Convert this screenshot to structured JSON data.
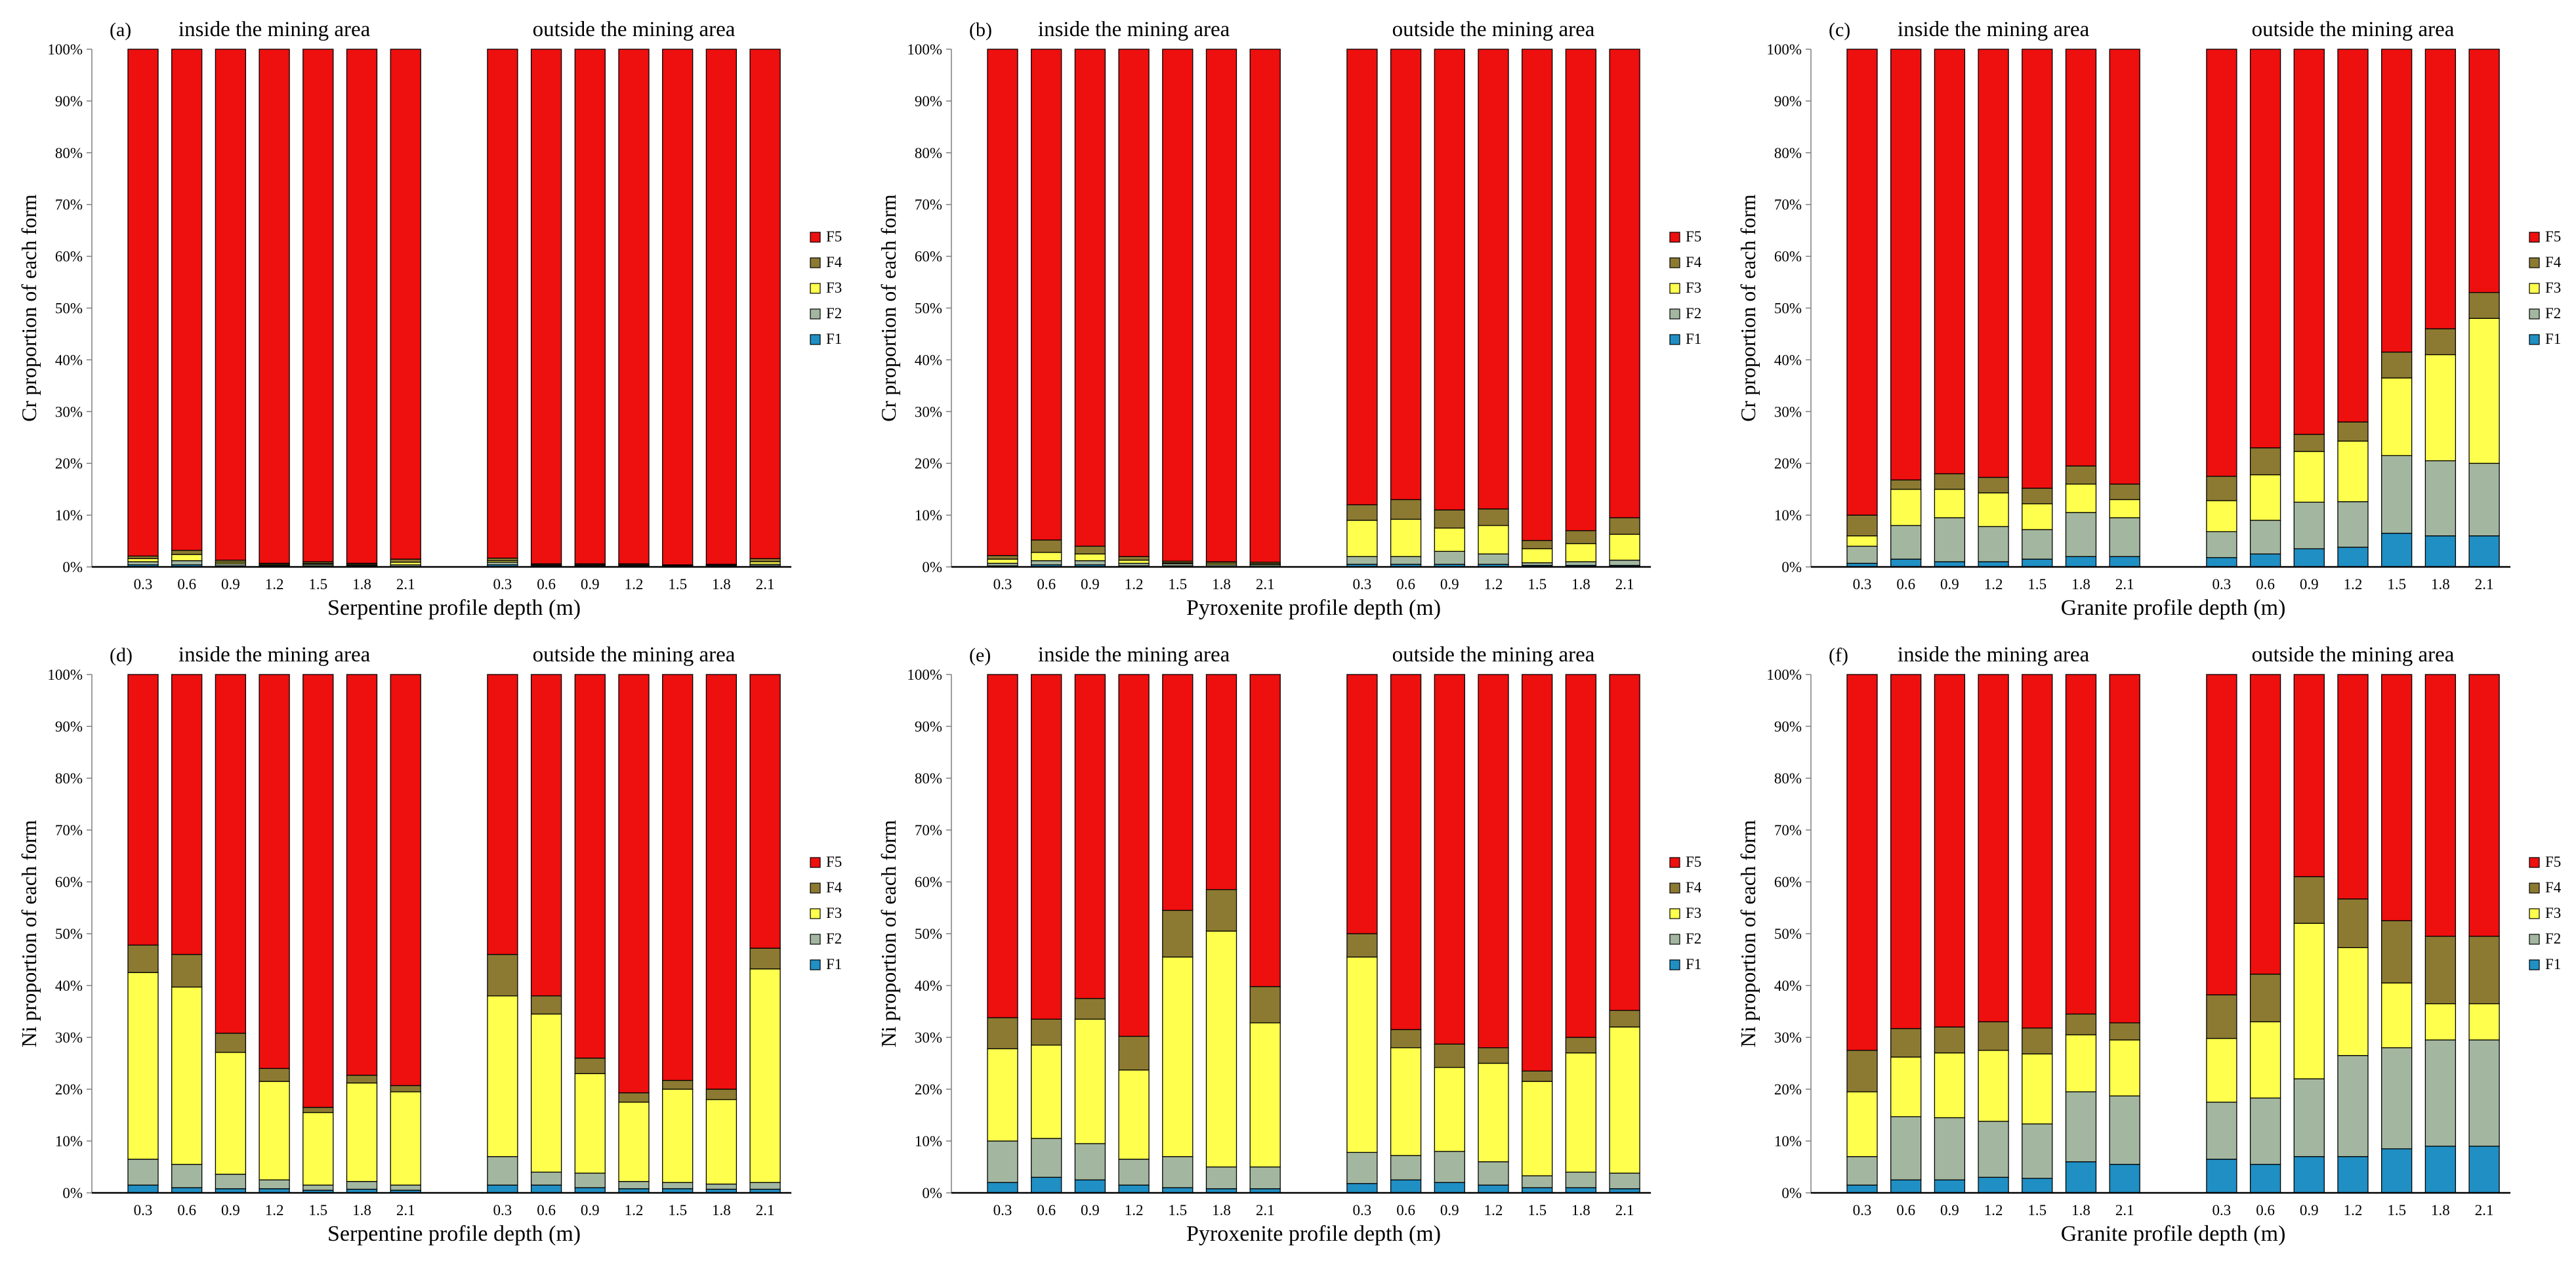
{
  "colors": {
    "F1": "#1f8fc4",
    "F2": "#a3b7a0",
    "F3": "#ffff4d",
    "F4": "#8c7a32",
    "F5": "#ee0f0f"
  },
  "legend": [
    "F5",
    "F4",
    "F3",
    "F2",
    "F1"
  ],
  "yticks": [
    "0%",
    "10%",
    "20%",
    "30%",
    "40%",
    "50%",
    "60%",
    "70%",
    "80%",
    "90%",
    "100%"
  ],
  "chart_data": [
    {
      "type": "bar",
      "stacked": true,
      "panel_label": "(a)",
      "group_titles": [
        "inside the mining area",
        "outside the mining area"
      ],
      "categories": [
        "0.3",
        "0.6",
        "0.9",
        "1.2",
        "1.5",
        "1.8",
        "2.1"
      ],
      "xlabel": "Serpentine profile depth (m)",
      "ylabel": "Cr proportion of each form",
      "ylim": [
        0,
        100
      ],
      "groups": [
        {
          "F1": [
            0.4,
            0.4,
            0.2,
            0.1,
            0.2,
            0.1,
            0.1
          ],
          "F2": [
            0.6,
            0.8,
            0.4,
            0.2,
            0.3,
            0.2,
            0.3
          ],
          "F3": [
            0.6,
            1.2,
            0.3,
            0.2,
            0.2,
            0.2,
            0.5
          ],
          "F4": [
            0.5,
            0.8,
            0.4,
            0.2,
            0.3,
            0.2,
            0.6
          ],
          "F5": [
            97.9,
            96.8,
            98.7,
            99.3,
            99.0,
            99.3,
            98.5
          ]
        },
        {
          "F1": [
            0.4,
            0.1,
            0.1,
            0.1,
            0.1,
            0.1,
            0.2
          ],
          "F2": [
            0.5,
            0.2,
            0.2,
            0.2,
            0.1,
            0.2,
            0.3
          ],
          "F3": [
            0.3,
            0.1,
            0.1,
            0.1,
            0.1,
            0.1,
            0.5
          ],
          "F4": [
            0.5,
            0.2,
            0.2,
            0.2,
            0.1,
            0.1,
            0.6
          ],
          "F5": [
            98.3,
            99.4,
            99.4,
            99.4,
            99.6,
            99.5,
            98.4
          ]
        }
      ]
    },
    {
      "type": "bar",
      "stacked": true,
      "panel_label": "(b)",
      "group_titles": [
        "inside the mining area",
        "outside the mining area"
      ],
      "categories": [
        "0.3",
        "0.6",
        "0.9",
        "1.2",
        "1.5",
        "1.8",
        "2.1"
      ],
      "xlabel": "Pyroxenite profile depth (m)",
      "ylabel": "Cr proportion of each form",
      "ylim": [
        0,
        100
      ],
      "groups": [
        {
          "F1": [
            0.2,
            0.4,
            0.4,
            0.2,
            0.2,
            0.1,
            0.1
          ],
          "F2": [
            0.5,
            0.8,
            0.8,
            0.5,
            0.4,
            0.3,
            0.3
          ],
          "F3": [
            0.8,
            1.6,
            1.3,
            0.6,
            0.2,
            0.3,
            0.2
          ],
          "F4": [
            0.7,
            2.4,
            1.5,
            0.7,
            0.3,
            0.3,
            0.3
          ],
          "F5": [
            97.8,
            94.8,
            96.0,
            98.0,
            98.9,
            99.0,
            99.1
          ]
        },
        {
          "F1": [
            0.5,
            0.5,
            0.5,
            0.5,
            0.3,
            0.3,
            0.3
          ],
          "F2": [
            1.5,
            1.5,
            2.5,
            2.0,
            0.5,
            0.7,
            1.0
          ],
          "F3": [
            7.0,
            7.2,
            4.5,
            5.5,
            2.7,
            3.5,
            5.0
          ],
          "F4": [
            3.0,
            3.8,
            3.5,
            3.2,
            1.6,
            2.5,
            3.2
          ],
          "F5": [
            88.0,
            87.0,
            89.0,
            88.8,
            94.9,
            93.0,
            90.5
          ]
        }
      ]
    },
    {
      "type": "bar",
      "stacked": true,
      "panel_label": "(c)",
      "group_titles": [
        "inside the mining area",
        "outside the mining area"
      ],
      "categories": [
        "0.3",
        "0.6",
        "0.9",
        "1.2",
        "1.5",
        "1.8",
        "2.1"
      ],
      "xlabel": "Granite profile depth (m)",
      "ylabel": "Cr proportion of each form",
      "ylim": [
        0,
        100
      ],
      "groups": [
        {
          "F1": [
            0.7,
            1.5,
            1.0,
            1.0,
            1.5,
            2.0,
            2.0
          ],
          "F2": [
            3.3,
            6.5,
            8.5,
            6.8,
            5.7,
            8.5,
            7.5
          ],
          "F3": [
            2.0,
            7.0,
            5.5,
            6.5,
            5.0,
            5.5,
            3.5
          ],
          "F4": [
            4.0,
            1.8,
            3.0,
            3.0,
            3.0,
            3.5,
            3.0
          ],
          "F5": [
            90.0,
            83.2,
            82.0,
            82.7,
            84.8,
            80.5,
            84.0
          ]
        },
        {
          "F1": [
            1.8,
            2.5,
            3.5,
            3.8,
            6.5,
            6.0,
            6.0
          ],
          "F2": [
            5.0,
            6.5,
            9.0,
            8.8,
            15.0,
            14.5,
            14.0
          ],
          "F3": [
            6.0,
            8.8,
            9.8,
            11.7,
            15.0,
            20.5,
            28.0
          ],
          "F4": [
            4.7,
            5.2,
            3.3,
            3.7,
            5.0,
            5.0,
            5.0
          ],
          "F5": [
            82.5,
            77.0,
            74.4,
            72.0,
            58.5,
            54.0,
            47.0
          ]
        }
      ]
    },
    {
      "type": "bar",
      "stacked": true,
      "panel_label": "(d)",
      "group_titles": [
        "inside the mining area",
        "outside the mining area"
      ],
      "categories": [
        "0.3",
        "0.6",
        "0.9",
        "1.2",
        "1.5",
        "1.8",
        "2.1"
      ],
      "xlabel": "Serpentine profile depth (m)",
      "ylabel": "Ni proportion of each form",
      "ylim": [
        0,
        100
      ],
      "groups": [
        {
          "F1": [
            1.5,
            1.0,
            0.8,
            0.8,
            0.5,
            0.7,
            0.5
          ],
          "F2": [
            5.0,
            4.5,
            2.8,
            1.7,
            1.0,
            1.5,
            1.0
          ],
          "F3": [
            36.0,
            34.2,
            23.5,
            19.0,
            14.0,
            19.0,
            18.0
          ],
          "F4": [
            5.3,
            6.3,
            3.7,
            2.5,
            1.0,
            1.5,
            1.2
          ],
          "F5": [
            52.2,
            54.0,
            69.2,
            76.0,
            83.5,
            77.3,
            79.3
          ]
        },
        {
          "F1": [
            1.5,
            1.5,
            1.0,
            0.8,
            0.8,
            0.7,
            0.7
          ],
          "F2": [
            5.5,
            2.5,
            2.8,
            1.4,
            1.2,
            1.0,
            1.3
          ],
          "F3": [
            31.0,
            30.5,
            19.2,
            15.3,
            18.0,
            16.3,
            41.2
          ],
          "F4": [
            8.0,
            3.5,
            3.0,
            1.8,
            1.7,
            2.0,
            4.0
          ],
          "F5": [
            54.0,
            62.0,
            74.0,
            80.7,
            78.3,
            80.0,
            52.8
          ]
        }
      ]
    },
    {
      "type": "bar",
      "stacked": true,
      "panel_label": "(e)",
      "group_titles": [
        "inside the mining area",
        "outside the mining area"
      ],
      "categories": [
        "0.3",
        "0.6",
        "0.9",
        "1.2",
        "1.5",
        "1.8",
        "2.1"
      ],
      "xlabel": "Pyroxenite profile depth (m)",
      "ylabel": "Ni proportion of each form",
      "ylim": [
        0,
        100
      ],
      "groups": [
        {
          "F1": [
            2.0,
            3.0,
            2.5,
            1.5,
            1.0,
            0.8,
            0.8
          ],
          "F2": [
            8.0,
            7.5,
            7.0,
            5.0,
            6.0,
            4.2,
            4.2
          ],
          "F3": [
            17.8,
            18.0,
            24.0,
            17.2,
            38.5,
            45.5,
            27.8
          ],
          "F4": [
            6.0,
            5.0,
            4.0,
            6.5,
            9.0,
            8.0,
            7.0
          ],
          "F5": [
            66.2,
            66.5,
            62.5,
            69.8,
            45.5,
            41.5,
            60.2
          ]
        },
        {
          "F1": [
            1.8,
            2.5,
            2.0,
            1.5,
            1.0,
            1.0,
            0.8
          ],
          "F2": [
            6.0,
            4.7,
            6.0,
            4.5,
            2.3,
            3.0,
            3.0
          ],
          "F3": [
            37.7,
            20.8,
            16.2,
            19.0,
            18.2,
            23.0,
            28.2
          ],
          "F4": [
            4.5,
            3.5,
            4.5,
            3.0,
            2.0,
            3.0,
            3.2
          ],
          "F5": [
            50.0,
            68.5,
            71.3,
            72.0,
            76.5,
            70.0,
            64.8
          ]
        }
      ]
    },
    {
      "type": "bar",
      "stacked": true,
      "panel_label": "(f)",
      "group_titles": [
        "inside the mining area",
        "outside the mining area"
      ],
      "categories": [
        "0.3",
        "0.6",
        "0.9",
        "1.2",
        "1.5",
        "1.8",
        "2.1"
      ],
      "xlabel": "Granite profile depth (m)",
      "ylabel": "Ni proportion of each form",
      "ylim": [
        0,
        100
      ],
      "groups": [
        {
          "F1": [
            1.5,
            2.5,
            2.5,
            3.0,
            2.8,
            6.0,
            5.5
          ],
          "F2": [
            5.5,
            12.2,
            12.0,
            10.8,
            10.5,
            13.5,
            13.2
          ],
          "F3": [
            12.5,
            11.5,
            12.5,
            13.7,
            13.5,
            11.0,
            10.8
          ],
          "F4": [
            8.0,
            5.5,
            5.0,
            5.5,
            5.0,
            4.0,
            3.3
          ],
          "F5": [
            72.5,
            68.3,
            68.0,
            67.0,
            68.2,
            65.5,
            67.2
          ]
        },
        {
          "F1": [
            6.5,
            5.5,
            7.0,
            7.0,
            8.5,
            9.0,
            9.0
          ],
          "F2": [
            11.0,
            12.8,
            15.0,
            19.5,
            19.5,
            20.5,
            20.5
          ],
          "F3": [
            12.3,
            14.7,
            30.0,
            20.8,
            12.5,
            7.0,
            7.0
          ],
          "F4": [
            8.4,
            9.2,
            9.0,
            9.4,
            12.0,
            13.0,
            13.0
          ],
          "F5": [
            61.8,
            57.8,
            39.0,
            43.3,
            47.5,
            50.5,
            50.5
          ]
        }
      ]
    }
  ]
}
